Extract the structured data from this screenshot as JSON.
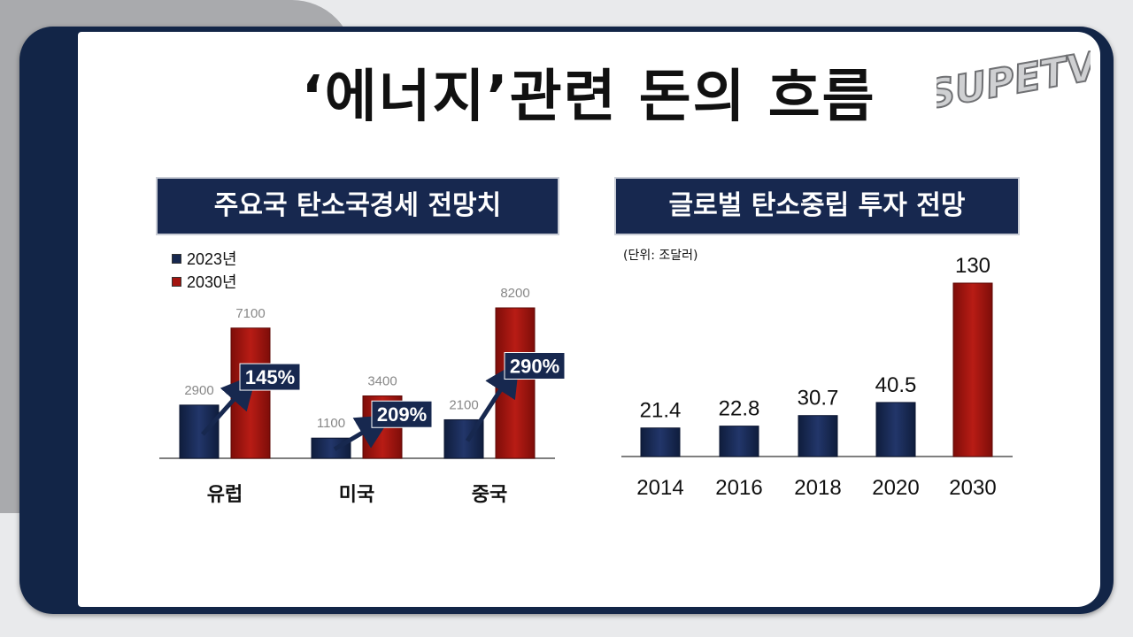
{
  "title": "‘에너지’관련 돈의 흐름",
  "logo_text": "SUPETV",
  "colors": {
    "navy": "#17284f",
    "red": "#a3140f",
    "frame": "#122547"
  },
  "chart_data": [
    {
      "type": "bar",
      "title": "주요국 탄소국경세 전망치",
      "categories": [
        "유럽",
        "미국",
        "중국"
      ],
      "series": [
        {
          "name": "2023년",
          "values": [
            2900,
            1100,
            2100
          ],
          "color": "#17284f"
        },
        {
          "name": "2030년",
          "values": [
            7100,
            3400,
            8200
          ],
          "color": "#a3140f"
        }
      ],
      "growth_labels": [
        "145%",
        "209%",
        "290%"
      ],
      "ylim": [
        0,
        8200
      ],
      "legend": "top-left",
      "grid": false
    },
    {
      "type": "bar",
      "title": "글로벌 탄소중립 투자 전망",
      "unit_note": "(단위: 조달러)",
      "categories": [
        "2014",
        "2016",
        "2018",
        "2020",
        "2030"
      ],
      "values": [
        21.4,
        22.8,
        30.7,
        40.5,
        130
      ],
      "value_labels": [
        "21.4",
        "22.8",
        "30.7",
        "40.5",
        "130"
      ],
      "highlight_index": 4,
      "ylim": [
        0,
        130
      ],
      "grid": false
    }
  ]
}
